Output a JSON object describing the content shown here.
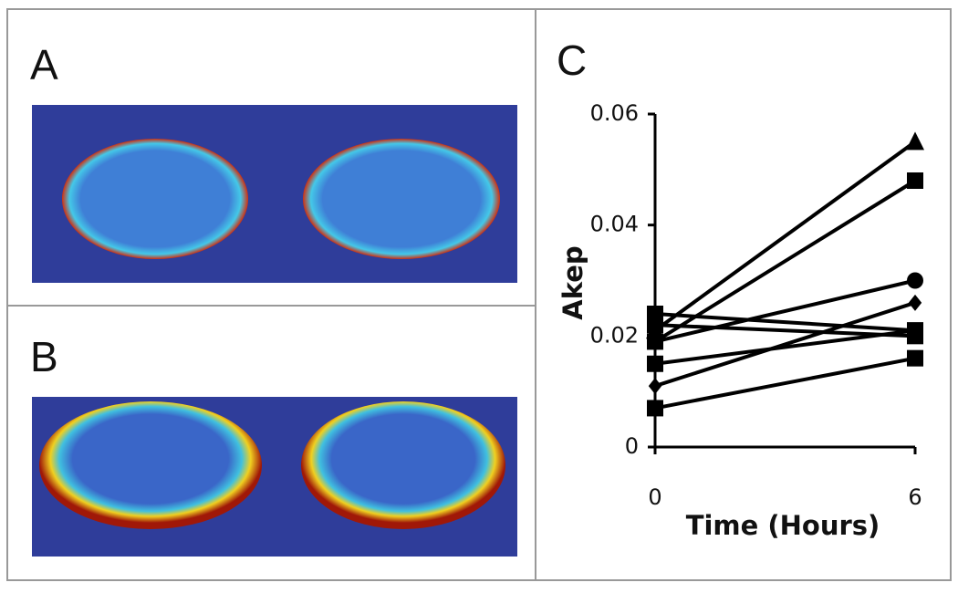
{
  "panel_labels": [
    "A",
    "B",
    "C"
  ],
  "chart_data": {
    "type": "line",
    "x_label": "Time (Hours)",
    "y_label": "Akep",
    "x": [
      0,
      6
    ],
    "xlim": [
      0,
      6
    ],
    "xticks": [
      0,
      6
    ],
    "ylim": [
      0,
      0.06
    ],
    "yticks": [
      0,
      0.02,
      0.04,
      0.06
    ],
    "grid": false,
    "series": [
      {
        "color": "#000000",
        "marker": "triangle",
        "values": [
          0.021,
          0.055
        ]
      },
      {
        "color": "#000000",
        "marker": "square",
        "values": [
          0.019,
          0.048
        ]
      },
      {
        "color": "#000000",
        "marker": "circle",
        "values": [
          0.019,
          0.03
        ]
      },
      {
        "color": "#000000",
        "marker": "diamond",
        "values": [
          0.011,
          0.026
        ]
      },
      {
        "color": "#000000",
        "marker": "square",
        "values": [
          0.024,
          0.021
        ]
      },
      {
        "color": "#000000",
        "marker": "square",
        "values": [
          0.022,
          0.02
        ]
      },
      {
        "color": "#000000",
        "marker": "square",
        "values": [
          0.015,
          0.021
        ]
      },
      {
        "color": "#000000",
        "marker": "square",
        "values": [
          0.007,
          0.016
        ]
      }
    ]
  }
}
